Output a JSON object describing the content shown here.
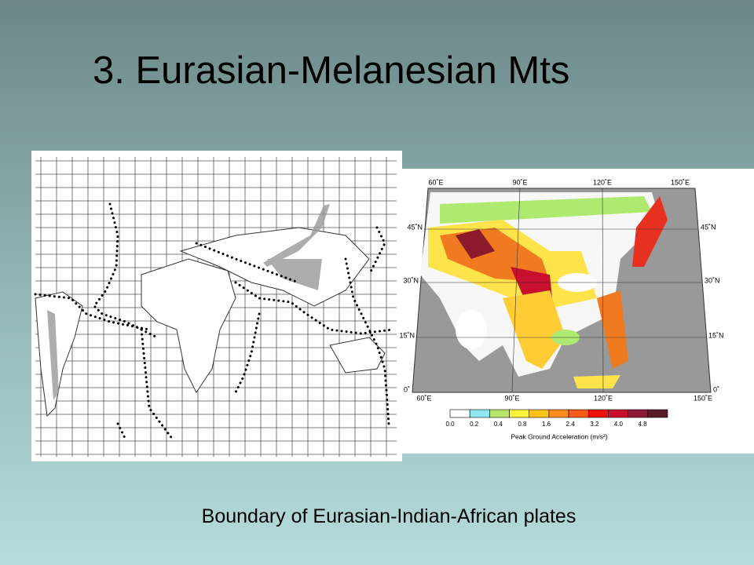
{
  "slide": {
    "title": "3. Eurasian-Melanesian Mts",
    "caption": "Boundary of Eurasian-Indian-African plates",
    "hazard_map": {
      "longitude_labels": [
        "60˚E",
        "90˚E",
        "120˚E",
        "150˚E"
      ],
      "latitude_labels": [
        "45˚N",
        "30˚N",
        "15˚N",
        "0˚"
      ],
      "legend_ticks": [
        "0.0",
        "0.2",
        "0.4",
        "0.8",
        "1.6",
        "2.4",
        "3.2",
        "4.0",
        "4.8"
      ],
      "legend_title": "Peak Ground Acceleration (m/s²)"
    }
  }
}
